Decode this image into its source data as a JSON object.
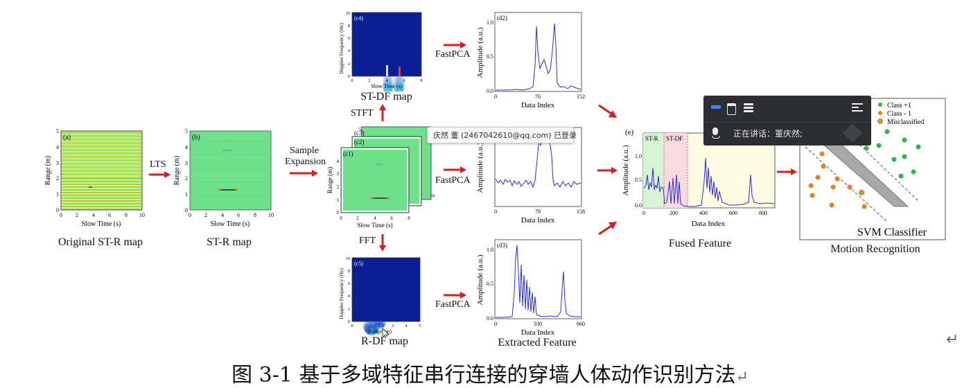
{
  "panels": {
    "a": {
      "tag": "(a)",
      "caption": "Original ST-R map",
      "xlabel": "Slow Time (s)",
      "ylabel": "Range (m)",
      "xticks": [
        "0",
        "2",
        "4",
        "6",
        "8",
        "10"
      ],
      "yticks": [
        "0",
        "1",
        "2",
        "3",
        "4",
        "5"
      ]
    },
    "b": {
      "tag": "(b)",
      "caption": "ST-R map",
      "xlabel": "Slow Time (s)",
      "ylabel": "Range (m)",
      "xticks": [
        "0",
        "2",
        "4",
        "6",
        "8",
        "10"
      ],
      "yticks": [
        "0",
        "1",
        "2",
        "3",
        "4",
        "5"
      ]
    },
    "c1": {
      "tag": "(c1)",
      "tag2": "(c2)",
      "tag3": "(c3)",
      "xlabel": "Slow Time (s)",
      "ylabel": "Range (m)",
      "xticks": [
        "0",
        "2",
        "4",
        "6",
        "8"
      ],
      "yticks": [
        "0",
        "1",
        "2",
        "3",
        "4",
        "5"
      ],
      "back_tick": "10"
    },
    "c4": {
      "tag": "(c4)",
      "caption": "ST-DF map",
      "xlabel": "Slow Time (s)",
      "ylabel": "Doppler Frequency (Hz)",
      "xticks": [
        "0",
        "2",
        "4",
        "6",
        "8"
      ],
      "yticks": [
        "0",
        "2",
        "4",
        "6",
        "8",
        "10"
      ]
    },
    "c5": {
      "tag": "(c5)",
      "caption": "R-DF map",
      "xlabel": "Range (m)",
      "ylabel": "Doppler Frequency (Hz)",
      "xticks": [
        "0",
        "1",
        "2",
        "3",
        "4",
        "5"
      ],
      "yticks": [
        "0",
        "2",
        "4",
        "6",
        "8",
        "10"
      ]
    },
    "d2": {
      "tag": "(d2)",
      "xlabel": "Data Index",
      "ylabel": "Amplitude (a.u.)",
      "xticks": [
        "0",
        "76",
        "152"
      ],
      "yticks": [
        "0.0",
        "0.5",
        "1.0"
      ]
    },
    "d1": {
      "xlabel": "Data Index",
      "ylabel": "Amplitude (a.u.)",
      "xticks": [
        "0",
        "79",
        "158"
      ]
    },
    "d3": {
      "tag": "(d3)",
      "caption": "Extracted Feature",
      "xlabel": "Data Index",
      "ylabel": "Amplitude (a.u.)",
      "xticks": [
        "0",
        "330",
        "660"
      ],
      "yticks": [
        "0.0",
        "0.5",
        "1.0"
      ]
    },
    "e": {
      "tag": "(e)",
      "caption": "Fused Feature",
      "xlabel": "Data Index",
      "ylabel": "Amplitude (a.u.)",
      "xticks": [
        "0",
        "200",
        "400",
        "600",
        "800"
      ],
      "yticks": [
        "0.0",
        "0.5",
        "1.0"
      ],
      "region1": "ST-R",
      "region2": "ST-DF"
    },
    "svm": {
      "caption": "Motion Recognition",
      "title": "SVM Classifier",
      "legend": [
        "Class +1",
        "Class - 1",
        "Misclassified"
      ],
      "colors": {
        "class_pos": "#2db84d",
        "class_neg": "#f07c1e",
        "misclassified": "#7bc142"
      }
    }
  },
  "arrows": {
    "lts": "LTS",
    "sample1": "Sample",
    "sample2": "Expansion",
    "stft": "STFT",
    "fft": "FFT",
    "fastpca": "FastPCA"
  },
  "tooltip": "庆然 董 (2467042610@qq.com) 已登录",
  "meeting": {
    "speaking": "正在讲话：董庆然;"
  },
  "caption": "图 3-1 基于多域特征串行连接的穿墙人体动作识别方法",
  "return_mark": "↵"
}
